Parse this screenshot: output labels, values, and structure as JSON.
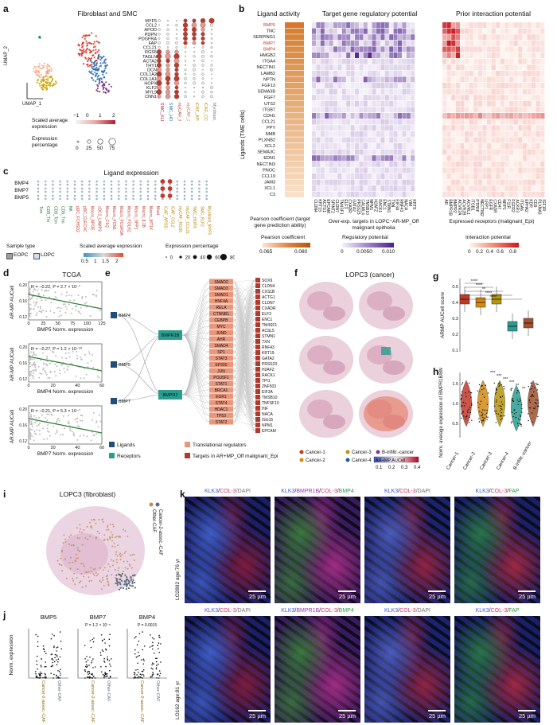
{
  "panels": {
    "a": {
      "letter": "a",
      "title": "Fibroblast and SMC",
      "umap_x": "UMAP_1",
      "umap_y": "UMAP_2",
      "genes": [
        "MYF5",
        "CCL2",
        "APOD",
        "PDPN",
        "PDGFRA",
        "FAP",
        "CCL21",
        "RGS5",
        "TAGLN",
        "ACTA2",
        "THY1",
        "DCN",
        "COL1A2",
        "COL1A1",
        "HOPX",
        "KLF2",
        "MYL9",
        "CNN1"
      ],
      "celltypes": [
        "SMC_KLF2",
        "SMC_HOPX",
        "myCAF_RGS5",
        "myCAF_CCL21",
        "iCAF_APOD",
        "iCAF_CCL2",
        "Myoblast_MYF5"
      ],
      "scale_title": "Scaled average expression",
      "scale_ticks": [
        "−1",
        "0",
        "1",
        "2"
      ],
      "pct_title": "Expression percentage",
      "pct_ticks": [
        "0",
        "25",
        "50",
        "75"
      ]
    },
    "b": {
      "letter": "b",
      "col1": "Ligand activity",
      "col2": "Target gene regulatory potential",
      "col3": "Prior interaction potential",
      "ylabel": "Ligands (TME cells)",
      "ligands": [
        "BMP5",
        "TNC",
        "SERPING1",
        "BMP7",
        "BMP4",
        "HMGB2",
        "ITGA4",
        "NECTIN1",
        "LAMB2",
        "NPTN",
        "FGF13",
        "SEMA3B",
        "FGF7",
        "UTS2",
        "ITGB7",
        "CDH1",
        "CCL21",
        "PPY",
        "NMB",
        "PLXNB2",
        "XCL2",
        "SEMA3C",
        "EDN1",
        "NECTIN3",
        "PNOC",
        "CCL19",
        "JAM3",
        "XCL1",
        "C3"
      ],
      "targets": [
        "CLDN4",
        "KRT19",
        "ACTG1",
        "EPCAM",
        "SPINT2",
        "CLDN7",
        "TM4SF1",
        "ELF3",
        "CXADR",
        "GATA2",
        "PRSS23",
        "CALML4",
        "TMSB10",
        "NPM1",
        "H2AFZ",
        "RACK1",
        "ENC1",
        "STMN1",
        "TXN",
        "EIF3A",
        "RNF43",
        "NACA",
        "VIM",
        "KRT8"
      ],
      "receptors": [
        "AR",
        "BMPR1B",
        "BMPR2",
        "ACVR2A",
        "ACVR2B",
        "ACVRL1",
        "ITGB1",
        "PTPRF",
        "NECTIN2",
        "LRP1",
        "EGFR",
        "CXADR",
        "CD47",
        "NRP1",
        "F11R",
        "FGFR2",
        "ACKR3",
        "ITGA6",
        "EPHA2",
        "KDR",
        "CD9",
        "PLXNA3",
        "IGF1R"
      ],
      "xl1": "Pearson coefficient (target gene prediction ability)",
      "xl2": "Over-exp. targets in LOPC−AR-MP_Off malignant epithelia",
      "xl3": "Expressed receptors (malignant_Epi)",
      "leg1_title": "Pearson coefficient",
      "leg1_ticks": [
        "0.065",
        "0.080"
      ],
      "leg2_title": "Regulatory potential",
      "leg2_ticks": [
        "0",
        "0.0050",
        "0.010"
      ],
      "leg3_title": "Interaction potential",
      "leg3_ticks": [
        "0",
        "0.2",
        "0.4",
        "0.6",
        "0.8"
      ]
    },
    "c": {
      "letter": "c",
      "title": "Ligand expression",
      "rows": [
        "BMP4",
        "BMP7",
        "BMP5"
      ],
      "cols": [
        "Tcm",
        "CD8_Tm",
        "CD8_Tcm",
        "CD8_Trm",
        "NK",
        "pDC_FCHSD2",
        "pDC_CLEC4C",
        "Macro_APOE",
        "cDC2_LAMP3",
        "Macro_C1Q",
        "Macro_FCN1",
        "Macro_FCGR3A",
        "Macro_FOLR2",
        "Macro_SPP1",
        "Macro_IL1B",
        "Macro_MT1X",
        "Mast",
        "iCAF_APOD",
        "iCAF_CCL2",
        "myCAF_RGS5",
        "myCAF_CCL21",
        "SMC_HOPX",
        "SMC_KLF2",
        "Myoblast_MYF5"
      ],
      "sample_title": "Sample type",
      "samples": [
        "EOPC",
        "LOPC"
      ],
      "scale_title": "Scaled average expression",
      "scale_ticks": [
        "0.5",
        "1",
        "1.5",
        "2"
      ],
      "pct_title": "Expression percentage",
      "pct_ticks": [
        "0",
        "20",
        "40",
        "60",
        "80"
      ]
    },
    "d": {
      "letter": "d",
      "title": "TCGA",
      "ylabel": "AR-MP AUCell",
      "plots": [
        {
          "stat": "R = −0.22, P = 2.7 × 10⁻⁷",
          "x": "BMP5 Norm. expression",
          "xt": [
            "0",
            "25",
            "50",
            "75",
            "100",
            "125"
          ],
          "yt": [
            "0.20",
            "0.16",
            "0.12"
          ]
        },
        {
          "stat": "R = −0.27, P = 1.2 × 10⁻¹⁰",
          "x": "BMP4 Norm. expression",
          "xt": [
            "0",
            "20",
            "40",
            "60"
          ],
          "yt": [
            "0.20",
            "0.16",
            "0.12"
          ]
        },
        {
          "stat": "R = −0.21, P = 5.3 × 10⁻⁷",
          "x": "BMP7 Norm. expression",
          "xt": [
            "0",
            "20",
            "40",
            "60"
          ],
          "yt": [
            "0.20",
            "0.16",
            "0.12"
          ]
        }
      ]
    },
    "e": {
      "letter": "e",
      "ligands": [
        "BMP4",
        "BMP5",
        "BMP7"
      ],
      "receptors": [
        "BMPR1B",
        "BMPR2"
      ],
      "regulators": [
        "SMAD2",
        "SMAD3",
        "SMAD1",
        "HNF4A",
        "RELA",
        "CTNNB1",
        "CEBPB",
        "MYC",
        "JUND",
        "AHR",
        "SMAD4",
        "SP1",
        "STAT3",
        "EP300",
        "JUN",
        "POU5F1",
        "STAT1",
        "BRCA1",
        "EGR1",
        "STAT4",
        "HDAC1",
        "TP53",
        "STAT2"
      ],
      "targets": [
        "SOX9",
        "CLDN4",
        "CXS1B",
        "ACTG1",
        "CLDN7",
        "CXADR",
        "ELF3",
        "ENC1",
        "TM4SF1",
        "ACSL5",
        "STMN1",
        "TXN",
        "RNF43",
        "KRT19",
        "GATA2",
        "PRSS23",
        "H2AFZ",
        "RACK1",
        "TPI1",
        "ZNF503",
        "EIF3A",
        "TMSB10",
        "TNFSF10",
        "HIF",
        "NACA",
        "ISG15",
        "NPM1",
        "EPCAM"
      ],
      "leg": [
        "Ligands",
        "Receptors",
        "Translational regulators",
        "Targets in AR+MP_Off malignant_Epi"
      ]
    },
    "f": {
      "letter": "f",
      "title": "LOPC3 (cancer)",
      "leg": [
        "Cancer-1",
        "Cancer-2",
        "Cancer-3",
        "Cancer-4",
        "B-infiltr.-cancer"
      ],
      "cb_title": "AR+MP AUCell",
      "cb_ticks": [
        "0.1",
        "0.2",
        "0.3",
        "0.4"
      ]
    },
    "g": {
      "letter": "g",
      "ylabel": "ARMP AUCell score",
      "yt": [
        "0.5",
        "0.4",
        "0.3",
        "0.2",
        "0.1"
      ],
      "sig": [
        "****",
        "****",
        "**",
        "****",
        "****"
      ]
    },
    "h": {
      "letter": "h",
      "ylabel": "Norm. average expression of BMPR1B/BMPR2",
      "yt": [
        "1.5",
        "1.0",
        "0.5"
      ],
      "groups": [
        "Cancer-1",
        "Cancer-2",
        "Cancer-3",
        "Cancer-4",
        "B-infiltr.-cancer"
      ],
      "sig": [
        "***",
        "***",
        "***",
        "***",
        "**",
        "**"
      ]
    },
    "i": {
      "letter": "i",
      "title": "LOPC3 (fibroblast)",
      "leg": [
        "Other-CAF",
        "Cancer-2-assoc.-CAF"
      ]
    },
    "j": {
      "letter": "j",
      "ylabel": "Norm. expression",
      "plots": [
        {
          "gene": "BMP5",
          "p": ""
        },
        {
          "gene": "BMP7",
          "p": "P = 1.2 × 10⁻⁶"
        },
        {
          "gene": "BMP4",
          "p": "P = 0.0015"
        }
      ],
      "xcats": [
        "Cancer-2-assoc.-CAF",
        "Other-CAF"
      ]
    },
    "k": {
      "letter": "k",
      "titles": [
        [
          [
            "KLK3",
            "#3b5bdb"
          ],
          [
            "/",
            "#222"
          ],
          [
            "COL-3",
            "#d6336c"
          ],
          [
            "/DAPI",
            "#777"
          ]
        ],
        [
          [
            "KLK3",
            "#3b5bdb"
          ],
          [
            "/",
            "#222"
          ],
          [
            "BMPR1B",
            "#9c36b5"
          ],
          [
            "/",
            "#222"
          ],
          [
            "COL-3",
            "#d6336c"
          ],
          [
            "/",
            "#222"
          ],
          [
            "BMP4",
            "#2f9e44"
          ]
        ],
        [
          [
            "KLK3",
            "#3b5bdb"
          ],
          [
            "/",
            "#222"
          ],
          [
            "COL-3",
            "#d6336c"
          ],
          [
            "/DAPI",
            "#777"
          ]
        ],
        [
          [
            "KLK3",
            "#3b5bdb"
          ],
          [
            "/",
            "#222"
          ],
          [
            "COL-3",
            "#d6336c"
          ],
          [
            "/",
            "#222"
          ],
          [
            "FAP",
            "#2f9e44"
          ]
        ]
      ],
      "rows": [
        "LO2892 age:76 yr",
        "LO162 age:81 yr"
      ],
      "scale": "25 µm"
    }
  }
}
